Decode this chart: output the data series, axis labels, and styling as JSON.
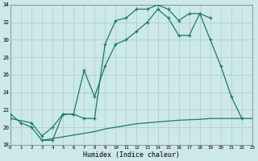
{
  "xlabel": "Humidex (Indice chaleur)",
  "background_color": "#cce8e8",
  "grid_color": "#aacccc",
  "line_color": "#1a7a6a",
  "x_min": 0,
  "x_max": 23,
  "y_min": 18,
  "y_max": 34,
  "yticks": [
    18,
    20,
    22,
    24,
    26,
    28,
    30,
    32,
    34
  ],
  "curve1_x": [
    0,
    1,
    2,
    3,
    4,
    5,
    6,
    7,
    8,
    9,
    10,
    11,
    12,
    13,
    14,
    15,
    16,
    17,
    18,
    19
  ],
  "curve1_y": [
    21.5,
    20.5,
    20.0,
    18.5,
    18.5,
    21.5,
    21.5,
    21.0,
    21.0,
    29.5,
    32.2,
    32.5,
    33.5,
    33.5,
    34.0,
    33.5,
    32.2,
    33.0,
    33.0,
    32.5
  ],
  "curve2_x": [
    0,
    2,
    3,
    4,
    5,
    6,
    7,
    8,
    9,
    10,
    11,
    12,
    13,
    14,
    15,
    16,
    17,
    18,
    19,
    20,
    21,
    22
  ],
  "curve2_y": [
    21.0,
    20.5,
    19.0,
    20.0,
    21.5,
    21.5,
    26.5,
    23.5,
    27.0,
    29.5,
    30.0,
    31.0,
    32.0,
    33.5,
    32.5,
    30.5,
    30.5,
    33.0,
    30.0,
    27.0,
    23.5,
    21.0
  ],
  "curve3_x": [
    3,
    4,
    5,
    6,
    7,
    8,
    9,
    10,
    11,
    12,
    13,
    14,
    15,
    16,
    17,
    18,
    19,
    20,
    21,
    22,
    23
  ],
  "curve3_y": [
    18.5,
    18.7,
    18.9,
    19.1,
    19.3,
    19.5,
    19.8,
    20.0,
    20.2,
    20.4,
    20.5,
    20.6,
    20.7,
    20.8,
    20.85,
    20.9,
    21.0,
    21.0,
    21.0,
    21.0,
    21.0
  ]
}
